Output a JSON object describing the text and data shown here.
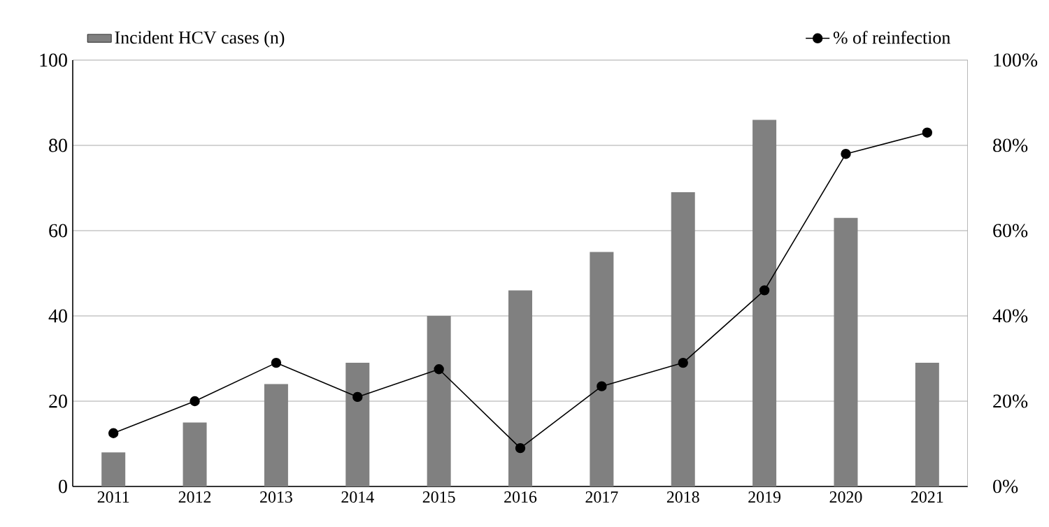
{
  "chart_data": {
    "type": "bar",
    "categories": [
      "2011",
      "2012",
      "2013",
      "2014",
      "2015",
      "2016",
      "2017",
      "2018",
      "2019",
      "2020",
      "2021"
    ],
    "series": [
      {
        "name": "Incident HCV cases (n)",
        "color": "#808080",
        "values": [
          8,
          15,
          24,
          29,
          40,
          46,
          55,
          69,
          86,
          63,
          29
        ]
      },
      {
        "name": "% of reinfection",
        "type": "line",
        "axis": "y2",
        "color": "#000000",
        "marker": "circle",
        "values": [
          12.5,
          20,
          29,
          21,
          27.5,
          9,
          23.5,
          29,
          46,
          78,
          83
        ]
      }
    ],
    "ylim": [
      0,
      100
    ],
    "yticks": [
      0,
      20,
      40,
      60,
      80,
      100
    ],
    "y2lim": [
      0,
      100
    ],
    "y2ticks": [
      {
        "value": 0,
        "label": "0%"
      },
      {
        "value": 20,
        "label": "20%"
      },
      {
        "value": 40,
        "label": "40%"
      },
      {
        "value": 60,
        "label": "60%"
      },
      {
        "value": 80,
        "label": "80%"
      },
      {
        "value": 100,
        "label": "100%"
      }
    ],
    "grid": "y",
    "legend": "top"
  }
}
